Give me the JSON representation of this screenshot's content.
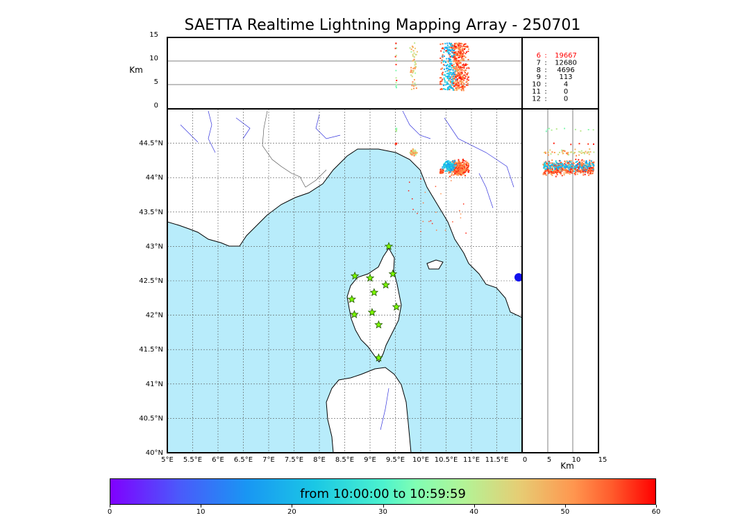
{
  "title": "SAETTA Realtime Lightning Mapping Array - 250701",
  "map": {
    "lon_range": [
      5,
      12.0
    ],
    "lat_range": [
      40,
      45.0
    ],
    "lon_ticks": [
      "5°E",
      "5.5°E",
      "6°E",
      "6.5°E",
      "7°E",
      "7.5°E",
      "8°E",
      "8.5°E",
      "9°E",
      "9.5°E",
      "10°E",
      "10.5°E",
      "11°E",
      "11.5°E"
    ],
    "lat_ticks": [
      "40°N",
      "40.5°N",
      "41°N",
      "41.5°N",
      "42°N",
      "42.5°N",
      "43°N",
      "43.5°N",
      "44°N",
      "44.5°N"
    ],
    "sea_color": "#b8ecfb",
    "stations": [
      [
        9.37,
        43.0
      ],
      [
        8.7,
        42.57
      ],
      [
        9.0,
        42.54
      ],
      [
        9.45,
        42.6
      ],
      [
        9.31,
        42.44
      ],
      [
        9.08,
        42.33
      ],
      [
        8.64,
        42.23
      ],
      [
        9.52,
        42.12
      ],
      [
        9.04,
        42.04
      ],
      [
        8.69,
        42.01
      ],
      [
        9.17,
        41.86
      ],
      [
        9.17,
        41.38
      ]
    ]
  },
  "altitude_panel": {
    "ylabel": "Km",
    "y_ticks": [
      "0",
      "5",
      "10",
      "15"
    ],
    "x_ticks": [
      "0",
      "5",
      "10",
      "15"
    ],
    "xlabel": "Km"
  },
  "counts": [
    {
      "level": "6",
      "value": "19667",
      "highlight": true
    },
    {
      "level": "7",
      "value": "12680",
      "highlight": false
    },
    {
      "level": "8",
      "value": "4696",
      "highlight": false
    },
    {
      "level": "9",
      "value": "113",
      "highlight": false
    },
    {
      "level": "10",
      "value": "4",
      "highlight": false
    },
    {
      "level": "11",
      "value": "0",
      "highlight": false
    },
    {
      "level": "12",
      "value": "0",
      "highlight": false
    }
  ],
  "colorbar": {
    "label": "from 10:00:00 to 10:59:59",
    "ticks": [
      "0",
      "10",
      "20",
      "30",
      "40",
      "50",
      "60"
    ],
    "range": [
      0,
      60
    ]
  },
  "colors": {
    "highlight": "#ff0000",
    "star": "#7cfc00",
    "border": "#000000"
  }
}
